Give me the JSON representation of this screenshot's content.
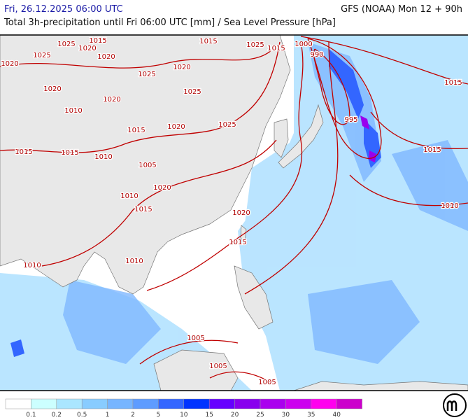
{
  "header": {
    "datetime": "Fri, 26.12.2025 06:00 UTC",
    "model": "GFS (NOAA) Mon 12 + 90h",
    "subtitle": "Total 3h-precipitation until Fri 06:00 UTC [mm] / Sea Level Pressure [hPa]"
  },
  "isobar_labels": [
    1015,
    1025,
    1020,
    1000,
    1015,
    1015,
    1025,
    1020,
    1025,
    1020,
    1020,
    1025,
    990,
    1020,
    1025,
    1010,
    1020,
    1015,
    1025,
    1015,
    1020,
    1015,
    995,
    1015,
    1010,
    1015,
    1005,
    1020,
    1010,
    1015,
    1010,
    1020,
    1015,
    1010,
    1010,
    1005,
    1005,
    1005
  ],
  "legend": {
    "labels": [
      0.1,
      0.2,
      0.5,
      1,
      2,
      5,
      10,
      15,
      20,
      25,
      30,
      35,
      40
    ],
    "colors": [
      "#ffffff",
      "#ccffff",
      "#aae6ff",
      "#88ccff",
      "#77b5ff",
      "#5e9cff",
      "#3366ff",
      "#0033ff",
      "#6600ff",
      "#8800ee",
      "#aa00ee",
      "#cc00ee",
      "#ff00ee",
      "#cc00cc"
    ]
  }
}
